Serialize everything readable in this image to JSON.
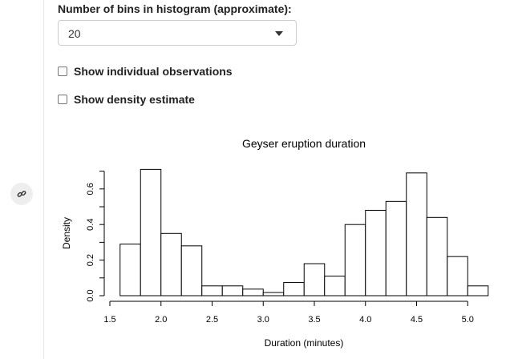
{
  "controls": {
    "bins_label": "Number of bins in histogram (approximate):",
    "bins_value": "20",
    "show_observations_label": "Show individual observations",
    "show_density_label": "Show density estimate"
  },
  "sidebar": {
    "link_icon": "link-icon"
  },
  "chart_data": {
    "type": "bar",
    "title": "Geyser eruption duration",
    "xlabel": "Duration (minutes)",
    "ylabel": "Density",
    "bin_width": 0.2,
    "bin_starts": [
      1.6,
      1.8,
      2.0,
      2.2,
      2.4,
      2.6,
      2.8,
      3.0,
      3.2,
      3.4,
      3.6,
      3.8,
      4.0,
      4.2,
      4.4,
      4.6,
      4.8,
      5.0
    ],
    "values": [
      0.29,
      0.71,
      0.35,
      0.28,
      0.055,
      0.055,
      0.037,
      0.018,
      0.074,
      0.18,
      0.11,
      0.4,
      0.48,
      0.53,
      0.69,
      0.44,
      0.22,
      0.055
    ],
    "xlim": [
      1.5,
      5.2
    ],
    "ylim": [
      0,
      0.7
    ],
    "x_ticks": [
      "1.5",
      "2.0",
      "2.5",
      "3.0",
      "3.5",
      "4.0",
      "4.5",
      "5.0"
    ],
    "y_ticks": [
      "0.0",
      "0.2",
      "0.4",
      "0.6"
    ],
    "grid": false,
    "bar_fill": "#ffffff",
    "bar_stroke": "#000000"
  }
}
